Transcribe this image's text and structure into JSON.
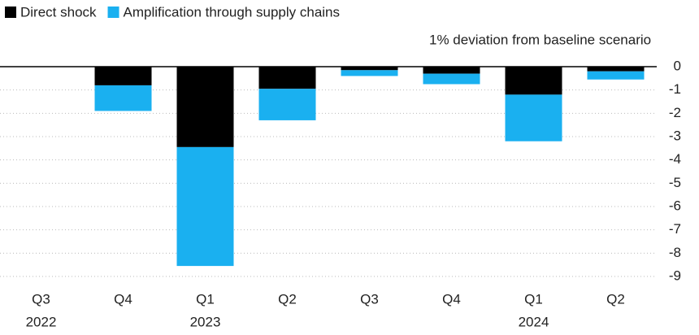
{
  "chart_data": {
    "type": "stacked_bar",
    "y_axis_label": "1% deviation from baseline scenario",
    "categories": [
      "Q3",
      "Q4",
      "Q1",
      "Q2",
      "Q3",
      "Q4",
      "Q1",
      "Q2"
    ],
    "category_years": [
      "2022",
      null,
      "2023",
      null,
      null,
      null,
      "2024",
      null
    ],
    "series": [
      {
        "name": "Direct shock",
        "color": "#000000",
        "values": [
          0,
          -0.8,
          -3.45,
          -0.95,
          -0.15,
          -0.3,
          -1.2,
          -0.2
        ]
      },
      {
        "name": "Amplification through supply chains",
        "color": "#1ab0f0",
        "values": [
          0,
          -1.1,
          -5.1,
          -1.35,
          -0.25,
          -0.45,
          -2.0,
          -0.35
        ]
      }
    ],
    "ylim": [
      -9,
      0
    ],
    "yticks": [
      0,
      -1,
      -2,
      -3,
      -4,
      -5,
      -6,
      -7,
      -8,
      -9
    ],
    "grid": true
  }
}
